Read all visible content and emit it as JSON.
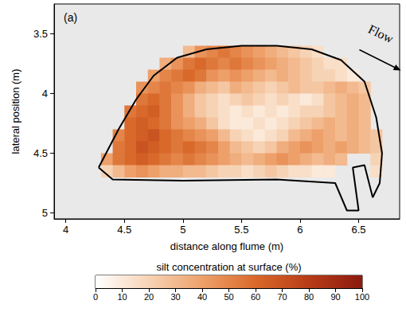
{
  "chart_data": {
    "type": "heatmap",
    "panel_label": "(a)",
    "x_label": "distance along flume (m)",
    "y_label": "lateral position (m)",
    "xlim": [
      3.9,
      6.85
    ],
    "xticks": [
      4,
      4.5,
      5,
      5.5,
      6,
      6.5
    ],
    "ylim": [
      5.05,
      3.25
    ],
    "yticks": [
      3.5,
      4,
      4.5,
      5
    ],
    "grid": false,
    "annotations": [
      {
        "text": "Flow",
        "x": 6.69,
        "y": 3.5
      }
    ],
    "boundary": {
      "x": [
        4.28,
        4.45,
        4.6,
        4.75,
        4.95,
        5.2,
        5.5,
        5.8,
        6.1,
        6.35,
        6.55,
        6.65,
        6.7,
        6.68,
        6.62,
        6.55,
        6.45,
        6.5,
        6.4,
        6.3,
        5.8,
        5,
        4.4
      ],
      "y": [
        4.62,
        4.3,
        4.05,
        3.85,
        3.7,
        3.63,
        3.6,
        3.6,
        3.63,
        3.72,
        3.9,
        4.2,
        4.5,
        4.75,
        4.87,
        4.6,
        4.62,
        4.98,
        4.98,
        4.75,
        4.72,
        4.73,
        4.72
      ]
    },
    "cells": {
      "x": [
        4.35,
        4.45,
        4.55,
        4.65,
        4.75,
        4.85,
        4.95,
        5.05,
        5.15,
        5.25,
        5.35,
        5.45,
        5.55,
        5.65,
        5.75,
        5.85,
        5.95,
        6.05,
        6.15,
        6.25,
        6.35,
        6.45,
        6.55,
        6.65
      ],
      "y": [
        3.65,
        3.75,
        3.85,
        3.95,
        4.05,
        4.15,
        4.25,
        4.35,
        4.45,
        4.55,
        4.65
      ],
      "values": [
        [
          null,
          null,
          null,
          null,
          null,
          null,
          null,
          30,
          45,
          50,
          55,
          50,
          45,
          40,
          35,
          30,
          25,
          20,
          15,
          null,
          null,
          null,
          null,
          null
        ],
        [
          null,
          null,
          null,
          null,
          null,
          35,
          45,
          55,
          60,
          55,
          50,
          55,
          50,
          45,
          40,
          35,
          30,
          25,
          20,
          15,
          15,
          null,
          null,
          null
        ],
        [
          null,
          null,
          null,
          null,
          40,
          50,
          55,
          60,
          55,
          45,
          40,
          45,
          40,
          35,
          30,
          35,
          30,
          25,
          20,
          20,
          15,
          10,
          null,
          null
        ],
        [
          null,
          null,
          null,
          45,
          50,
          55,
          50,
          45,
          35,
          30,
          25,
          35,
          30,
          25,
          20,
          25,
          30,
          25,
          25,
          30,
          35,
          30,
          25,
          null
        ],
        [
          null,
          null,
          null,
          55,
          60,
          55,
          45,
          35,
          25,
          20,
          15,
          20,
          25,
          20,
          15,
          20,
          15,
          10,
          15,
          25,
          30,
          35,
          30,
          null
        ],
        [
          null,
          null,
          55,
          60,
          65,
          55,
          45,
          35,
          25,
          20,
          15,
          10,
          15,
          10,
          15,
          10,
          15,
          20,
          20,
          25,
          30,
          35,
          30,
          null
        ],
        [
          null,
          null,
          60,
          65,
          60,
          55,
          45,
          40,
          35,
          25,
          15,
          10,
          10,
          15,
          10,
          15,
          20,
          25,
          30,
          35,
          30,
          35,
          30,
          null
        ],
        [
          null,
          50,
          60,
          65,
          70,
          60,
          55,
          50,
          45,
          40,
          30,
          20,
          15,
          10,
          15,
          20,
          30,
          35,
          40,
          35,
          30,
          35,
          30,
          25
        ],
        [
          null,
          55,
          60,
          70,
          65,
          60,
          55,
          60,
          55,
          50,
          40,
          30,
          25,
          20,
          25,
          35,
          40,
          45,
          40,
          35,
          40,
          35,
          30,
          25
        ],
        [
          40,
          55,
          60,
          65,
          60,
          55,
          50,
          55,
          50,
          45,
          40,
          35,
          30,
          35,
          40,
          45,
          40,
          35,
          30,
          35,
          30,
          null,
          null,
          20
        ],
        [
          20,
          30,
          40,
          45,
          40,
          35,
          35,
          30,
          30,
          25,
          20,
          20,
          15,
          20,
          25,
          20,
          15,
          15,
          10,
          10,
          null,
          null,
          null,
          15
        ]
      ]
    },
    "colorbar": {
      "label": "silt concentration at surface (%)",
      "range": [
        0,
        100
      ],
      "ticks": [
        0,
        10,
        20,
        30,
        40,
        50,
        60,
        70,
        80,
        90,
        100
      ],
      "colors": [
        "#ffffff",
        "#f7d3b5",
        "#eea06a",
        "#d9692a",
        "#b83c17",
        "#8b1a0e"
      ]
    }
  }
}
